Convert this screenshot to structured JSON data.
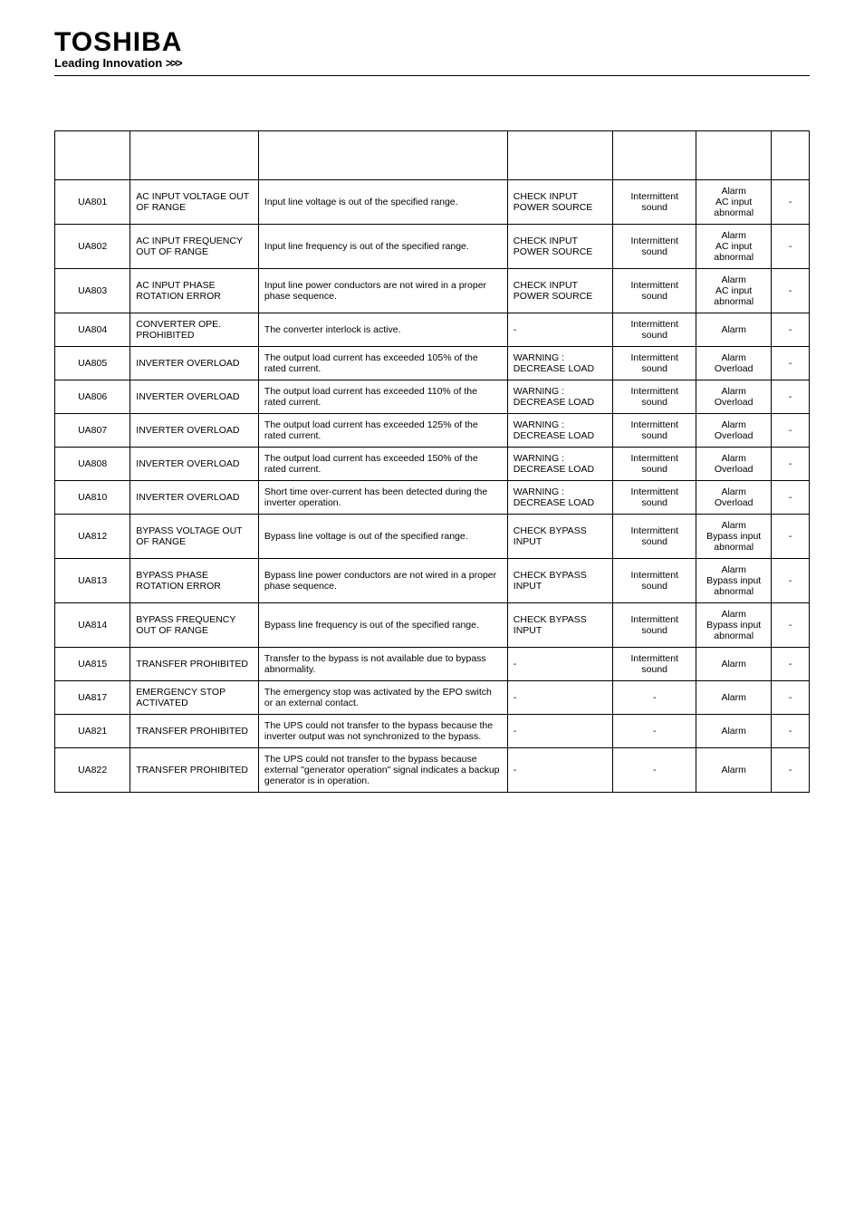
{
  "brand": {
    "name": "TOSHIBA",
    "tagline": "Leading Innovation",
    "chevrons": ">>>"
  },
  "rows": [
    {
      "code": "UA801",
      "title": "AC INPUT VOLTAGE OUT OF RANGE",
      "cause": "Input line voltage is out of the specified range.",
      "lcd": "CHECK INPUT POWER SOURCE",
      "buzzer": "Intermittent sound",
      "led": "Alarm\nAC input abnormal",
      "extra": "-"
    },
    {
      "code": "UA802",
      "title": "AC INPUT FREQUENCY OUT OF RANGE",
      "cause": "Input line frequency is out of the specified range.",
      "lcd": "CHECK INPUT POWER SOURCE",
      "buzzer": "Intermittent sound",
      "led": "Alarm\nAC input abnormal",
      "extra": "-"
    },
    {
      "code": "UA803",
      "title": "AC INPUT PHASE ROTATION ERROR",
      "cause": "Input line power conductors are not wired in a proper phase sequence.",
      "lcd": "CHECK INPUT POWER SOURCE",
      "buzzer": "Intermittent sound",
      "led": "Alarm\nAC input abnormal",
      "extra": "-"
    },
    {
      "code": "UA804",
      "title": "CONVERTER OPE. PROHIBITED",
      "cause": "The converter interlock is active.",
      "lcd": "-",
      "buzzer": "Intermittent sound",
      "led": "Alarm",
      "extra": "-"
    },
    {
      "code": "UA805",
      "title": "INVERTER OVERLOAD",
      "cause": "The output load current has exceeded 105% of the rated current.",
      "lcd": "WARNING : DECREASE LOAD",
      "buzzer": "Intermittent sound",
      "led": "Alarm\nOverload",
      "extra": "-"
    },
    {
      "code": "UA806",
      "title": "INVERTER OVERLOAD",
      "cause": "The output load current has exceeded 110% of the rated current.",
      "lcd": "WARNING : DECREASE LOAD",
      "buzzer": "Intermittent sound",
      "led": "Alarm\nOverload",
      "extra": "-"
    },
    {
      "code": "UA807",
      "title": "INVERTER OVERLOAD",
      "cause": "The output load current has exceeded 125% of the rated current.",
      "lcd": "WARNING : DECREASE LOAD",
      "buzzer": "Intermittent sound",
      "led": "Alarm\nOverload",
      "extra": "-"
    },
    {
      "code": "UA808",
      "title": "INVERTER OVERLOAD",
      "cause": "The output load current has exceeded 150% of the rated current.",
      "lcd": "WARNING : DECREASE LOAD",
      "buzzer": "Intermittent sound",
      "led": "Alarm\nOverload",
      "extra": "-"
    },
    {
      "code": "UA810",
      "title": "INVERTER OVERLOAD",
      "cause": "Short time over-current has been detected during the inverter operation.",
      "lcd": "WARNING : DECREASE LOAD",
      "buzzer": "Intermittent sound",
      "led": "Alarm\nOverload",
      "extra": "-"
    },
    {
      "code": "UA812",
      "title": "BYPASS VOLTAGE OUT OF RANGE",
      "cause": "Bypass line voltage is out of the specified range.",
      "lcd": "CHECK BYPASS INPUT",
      "buzzer": "Intermittent sound",
      "led": "Alarm\nBypass input abnormal",
      "extra": "-"
    },
    {
      "code": "UA813",
      "title": "BYPASS PHASE ROTATION ERROR",
      "cause": "Bypass line power conductors are not wired in a proper phase sequence.",
      "lcd": "CHECK BYPASS INPUT",
      "buzzer": "Intermittent sound",
      "led": "Alarm\nBypass input abnormal",
      "extra": "-"
    },
    {
      "code": "UA814",
      "title": "BYPASS FREQUENCY OUT OF RANGE",
      "cause": "Bypass line frequency is out of the specified range.",
      "lcd": "CHECK BYPASS INPUT",
      "buzzer": "Intermittent sound",
      "led": "Alarm\nBypass input abnormal",
      "extra": "-"
    },
    {
      "code": "UA815",
      "title": "TRANSFER PROHIBITED",
      "cause": "Transfer to the bypass is not available due to bypass abnormality.",
      "lcd": "-",
      "buzzer": "Intermittent sound",
      "led": "Alarm",
      "extra": "-"
    },
    {
      "code": "UA817",
      "title": "EMERGENCY STOP ACTIVATED",
      "cause": "The emergency stop was activated by the EPO switch or an external contact.",
      "lcd": "-",
      "buzzer": "-",
      "led": "Alarm",
      "extra": "-"
    },
    {
      "code": "UA821",
      "title": "TRANSFER PROHIBITED",
      "cause": "The UPS could not transfer to the bypass because the inverter output was not synchronized to the bypass.",
      "lcd": "-",
      "buzzer": "-",
      "led": "Alarm",
      "extra": "-"
    },
    {
      "code": "UA822",
      "title": "TRANSFER PROHIBITED",
      "cause": "The UPS could not transfer to the bypass because external \"generator operation\" signal indicates a backup generator is in operation.",
      "lcd": "-",
      "buzzer": "-",
      "led": "Alarm",
      "extra": "-"
    }
  ]
}
